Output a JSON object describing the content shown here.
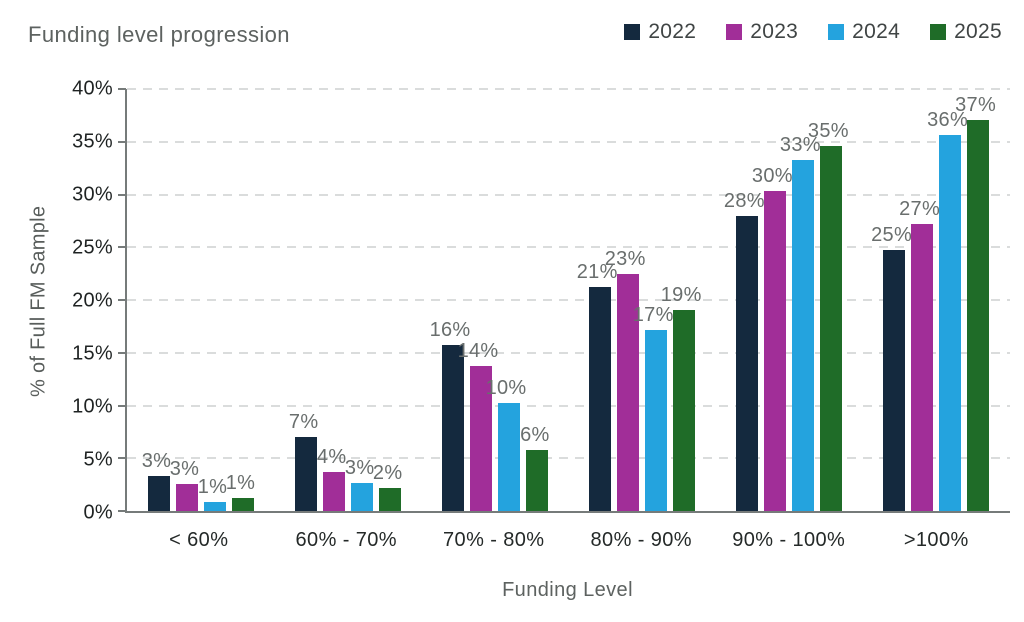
{
  "chart_data": {
    "type": "bar",
    "title": "Funding level progression",
    "xlabel": "Funding Level",
    "ylabel": "% of Full FM Sample",
    "categories": [
      "< 60%",
      "60% - 70%",
      "70% - 80%",
      "80% - 90%",
      "90% - 100%",
      ">100%"
    ],
    "series": [
      {
        "name": "2022",
        "color": "#14293E",
        "values": [
          3.3,
          7.0,
          15.7,
          21.2,
          28.0,
          24.7
        ],
        "labels": [
          "3%",
          "7%",
          "16%",
          "21%",
          "28%",
          "25%"
        ]
      },
      {
        "name": "2023",
        "color": "#A12E98",
        "values": [
          2.6,
          3.7,
          13.7,
          22.5,
          30.3,
          27.2
        ],
        "labels": [
          "3%",
          "4%",
          "14%",
          "23%",
          "30%",
          "27%"
        ]
      },
      {
        "name": "2024",
        "color": "#24A3DE",
        "values": [
          0.9,
          2.7,
          10.2,
          17.2,
          33.3,
          35.6
        ],
        "labels": [
          "1%",
          "3%",
          "10%",
          "17%",
          "33%",
          "36%"
        ]
      },
      {
        "name": "2025",
        "color": "#1F6C28",
        "values": [
          1.2,
          2.2,
          5.8,
          19.1,
          34.6,
          37.1
        ],
        "labels": [
          "1%",
          "2%",
          "6%",
          "19%",
          "35%",
          "37%"
        ]
      }
    ],
    "ylim": [
      0,
      40
    ],
    "ytick_step": 5,
    "yticks": [
      "0%",
      "5%",
      "10%",
      "15%",
      "20%",
      "25%",
      "30%",
      "35%",
      "40%"
    ],
    "grid": true,
    "gridline_color": "#dadcdc",
    "axis_color": "#767b7a",
    "legend_position": "top-right"
  }
}
